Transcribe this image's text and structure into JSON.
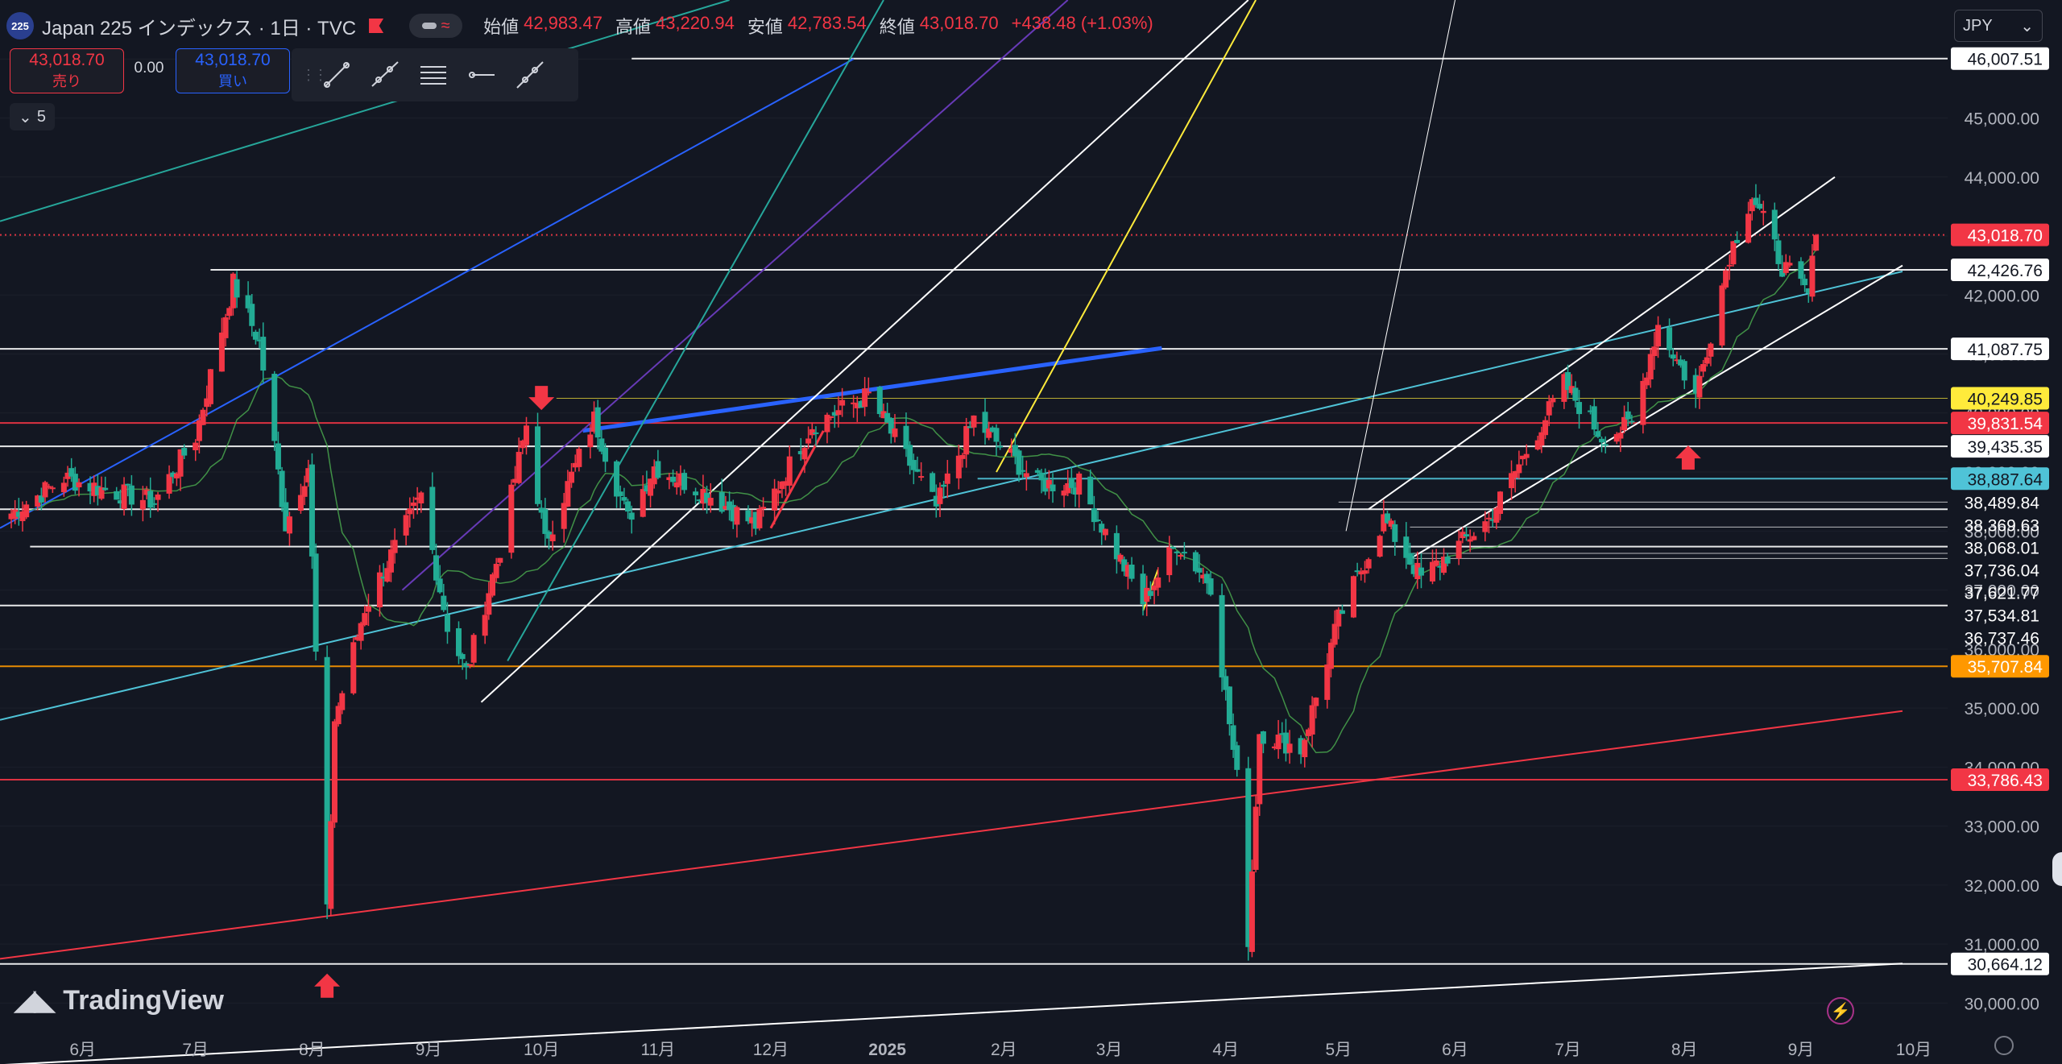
{
  "header": {
    "symbol_badge": "225",
    "title": "Japan 225 インデックス · 1日 · TVC",
    "ohlc": [
      {
        "label": "始値",
        "value": "42,983.47"
      },
      {
        "label": "高値",
        "value": "43,220.94"
      },
      {
        "label": "安値",
        "value": "42,783.54"
      },
      {
        "label": "終値",
        "value": "43,018.70"
      }
    ],
    "change": "+438.48 (+1.03%)"
  },
  "trade": {
    "sell_price": "43,018.70",
    "sell_label": "売り",
    "spread": "0.00",
    "buy_price": "43,018.70",
    "buy_label": "買い"
  },
  "collapse_count": "5",
  "currency": "JPY",
  "logo_text": "TradingView",
  "colors": {
    "background": "#131722",
    "up": "#f23645",
    "down": "#22ab94",
    "ma": "#4caf50",
    "white_line": "#ffffff",
    "blue_line": "#2962ff",
    "cyan_line": "#4fc3d7",
    "purple_line": "#673ab7",
    "teal_line": "#26a69a",
    "yellow_line": "#ffeb3b",
    "red_line": "#f23645",
    "orange_line": "#ff9800"
  },
  "toolbar_icons": [
    "trend-line-icon",
    "ray-icon",
    "horizontal-lines-icon",
    "horizontal-ray-icon",
    "extended-line-icon"
  ],
  "chart_data": {
    "type": "candlestick",
    "x_labels": [
      {
        "label": "6月",
        "date": "2024-06-01"
      },
      {
        "label": "7月",
        "date": "2024-07-01"
      },
      {
        "label": "8月",
        "date": "2024-08-01"
      },
      {
        "label": "9月",
        "date": "2024-09-01"
      },
      {
        "label": "10月",
        "date": "2024-10-01"
      },
      {
        "label": "11月",
        "date": "2024-11-01"
      },
      {
        "label": "12月",
        "date": "2024-12-01"
      },
      {
        "label": "2025",
        "date": "2025-01-01"
      },
      {
        "label": "2月",
        "date": "2025-02-01"
      },
      {
        "label": "3月",
        "date": "2025-03-01"
      },
      {
        "label": "4月",
        "date": "2025-04-01"
      },
      {
        "label": "5月",
        "date": "2025-05-01"
      },
      {
        "label": "6月",
        "date": "2025-06-01"
      },
      {
        "label": "7月",
        "date": "2025-07-01"
      },
      {
        "label": "8月",
        "date": "2025-08-01"
      },
      {
        "label": "9月",
        "date": "2025-09-01"
      },
      {
        "label": "10月",
        "date": "2025-10-01"
      }
    ],
    "y_ticks": [
      "46,000.00",
      "45,000.00",
      "44,000.00",
      "43,000.00",
      "42,000.00",
      "41,000.00",
      "40,000.00",
      "39,000.00",
      "38,000.00",
      "37,000.00",
      "36,000.00",
      "35,000.00",
      "34,000.00",
      "33,000.00",
      "32,000.00",
      "31,000.00",
      "30,000.00"
    ],
    "ylim": [
      29500,
      47000
    ],
    "xlim": [
      "2024-05-10",
      "2025-10-10"
    ],
    "price_levels": [
      {
        "value": 46007.51,
        "text": "46,007.51",
        "color": "#ffffff",
        "badge": "#ffffff",
        "from": "2024-10-25",
        "line": true
      },
      {
        "value": 43018.7,
        "text": "43,018.70",
        "color": "#f23645",
        "badge": "#f23645",
        "from": "2024-05-10",
        "line": "dotted"
      },
      {
        "value": 42426.76,
        "text": "42,426.76",
        "color": "#ffffff",
        "badge": "#ffffff",
        "from": "2024-07-05",
        "line": true
      },
      {
        "value": 41087.75,
        "text": "41,087.75",
        "color": "#ffffff",
        "badge": "#ffffff",
        "from": "2024-05-10",
        "line": true
      },
      {
        "value": 40249.85,
        "text": "40,249.85",
        "color": "#ffeb3b",
        "badge": "#ffeb3b",
        "from": "2024-10-05",
        "line": "thin"
      },
      {
        "value": 39831.54,
        "text": "39,831.54",
        "color": "#f23645",
        "badge": "#f23645",
        "from": "2024-05-10",
        "line": true
      },
      {
        "value": 39435.35,
        "text": "39,435.35",
        "color": "#ffffff",
        "badge": "#ffffff",
        "from": "2024-05-10",
        "line": true
      },
      {
        "value": 38887.64,
        "text": "38,887.64",
        "color": "#4fc3d7",
        "badge": "#4fc3d7",
        "from": "2025-01-25",
        "line": true
      },
      {
        "value": 38489.84,
        "text": "38,489.84",
        "color": "#ffffff",
        "badge": "none",
        "from": "2025-05-01",
        "line": "thin"
      },
      {
        "value": 38369.63,
        "text": "38,369.63",
        "color": "#ffffff",
        "badge": "none",
        "from": "2024-05-10",
        "line": true
      },
      {
        "value": 38068.01,
        "text": "38,068.01",
        "color": "#ffffff",
        "badge": "none",
        "from": "2025-05-20",
        "line": "thin"
      },
      {
        "value": 37736.04,
        "text": "37,736.04",
        "color": "#ffffff",
        "badge": "none",
        "from": "2024-05-18",
        "line": true
      },
      {
        "value": 37621.77,
        "text": "37,621.77",
        "color": "#ffffff",
        "badge": "none",
        "from": "2025-05-20",
        "line": "thin"
      },
      {
        "value": 37534.81,
        "text": "37,534.81",
        "color": "#ffffff",
        "badge": "none",
        "from": "2025-05-20",
        "line": "thin"
      },
      {
        "value": 36737.46,
        "text": "36,737.46",
        "color": "#ffffff",
        "badge": "none",
        "from": "2024-05-10",
        "line": true
      },
      {
        "value": 35707.84,
        "text": "35,707.84",
        "color": "#ff9800",
        "badge": "#ff9800",
        "from": "2024-05-10",
        "line": true
      },
      {
        "value": 33786.43,
        "text": "33,786.43",
        "color": "#f23645",
        "badge": "#f23645",
        "from": "2024-05-10",
        "line": true
      },
      {
        "value": 30664.12,
        "text": "30,664.12",
        "color": "#ffffff",
        "badge": "#ffffff",
        "from": "2024-05-10",
        "line": true
      }
    ],
    "trend_lines": [
      {
        "color": "#ffffff",
        "width": 2,
        "from": [
          "2024-05-10",
          28950
        ],
        "to": [
          "2025-09-28",
          30670
        ]
      },
      {
        "color": "#f23645",
        "width": 2,
        "from": [
          "2024-05-10",
          30750
        ],
        "to": [
          "2025-09-28",
          34950
        ]
      },
      {
        "color": "#4fc3d7",
        "width": 2,
        "from": [
          "2024-05-10",
          34800
        ],
        "to": [
          "2025-09-28",
          42400
        ]
      },
      {
        "color": "#2962ff",
        "width": 2,
        "from": [
          "2024-05-10",
          38050
        ],
        "to": [
          "2024-12-23",
          46000
        ]
      },
      {
        "color": "#2962ff",
        "width": 5,
        "from": [
          "2024-10-12",
          39700
        ],
        "to": [
          "2025-03-15",
          41100
        ]
      },
      {
        "color": "#673ab7",
        "width": 2,
        "from": [
          "2024-08-25",
          37000
        ],
        "to": [
          "2025-02-18",
          47000
        ]
      },
      {
        "color": "#26a69a",
        "width": 2,
        "from": [
          "2024-05-10",
          43250
        ],
        "to": [
          "2024-11-20",
          47000
        ]
      },
      {
        "color": "#26a69a",
        "width": 2,
        "from": [
          "2024-09-22",
          35800
        ],
        "to": [
          "2024-12-31",
          47000
        ]
      },
      {
        "color": "#ffffff",
        "width": 2,
        "from": [
          "2024-09-15",
          35100
        ],
        "to": [
          "2025-04-07",
          47000
        ]
      },
      {
        "color": "#ffeb3b",
        "width": 2,
        "from": [
          "2025-01-30",
          39000
        ],
        "to": [
          "2025-04-09",
          47000
        ]
      },
      {
        "color": "#ffffff",
        "width": 1,
        "from": [
          "2025-05-03",
          38000
        ],
        "to": [
          "2025-06-01",
          47000
        ]
      },
      {
        "color": "#ffffff",
        "width": 2,
        "from": [
          "2025-05-09",
          38370
        ],
        "to": [
          "2025-09-10",
          44000
        ]
      },
      {
        "color": "#ffffff",
        "width": 2,
        "from": [
          "2025-05-20",
          37530
        ],
        "to": [
          "2025-09-28",
          42500
        ]
      },
      {
        "color": "#f23645",
        "width": 3,
        "from": [
          "2024-12-01",
          38050
        ],
        "to": [
          "2024-12-15",
          39700
        ]
      },
      {
        "color": "#ffeb3b",
        "width": 2,
        "from": [
          "2025-03-10",
          36650
        ],
        "to": [
          "2025-03-14",
          37350
        ]
      }
    ],
    "arrows": [
      {
        "date": "2024-10-01",
        "price": 40050,
        "dir": "down"
      },
      {
        "date": "2024-08-05",
        "price": 30500,
        "dir": "up"
      },
      {
        "date": "2025-08-02",
        "price": 39450,
        "dir": "up"
      }
    ],
    "candles_anchors": [
      [
        "2024-05-13",
        38300
      ],
      [
        "2024-05-27",
        38900
      ],
      [
        "2024-06-07",
        38700
      ],
      [
        "2024-06-20",
        38500
      ],
      [
        "2024-07-01",
        39600
      ],
      [
        "2024-07-11",
        42200
      ],
      [
        "2024-07-18",
        41200
      ],
      [
        "2024-07-25",
        38100
      ],
      [
        "2024-07-31",
        39100
      ],
      [
        "2024-08-02",
        35900
      ],
      [
        "2024-08-05",
        31500
      ],
      [
        "2024-08-07",
        34800
      ],
      [
        "2024-08-15",
        36700
      ],
      [
        "2024-08-30",
        38600
      ],
      [
        "2024-09-06",
        36400
      ],
      [
        "2024-09-11",
        35600
      ],
      [
        "2024-09-20",
        37700
      ],
      [
        "2024-09-27",
        39800
      ],
      [
        "2024-10-02",
        37800
      ],
      [
        "2024-10-15",
        39900
      ],
      [
        "2024-10-24",
        38200
      ],
      [
        "2024-10-31",
        39100
      ],
      [
        "2024-11-15",
        38600
      ],
      [
        "2024-11-27",
        38100
      ],
      [
        "2024-12-12",
        39800
      ],
      [
        "2024-12-27",
        40300
      ],
      [
        "2025-01-14",
        38400
      ],
      [
        "2025-01-24",
        39900
      ],
      [
        "2025-02-10",
        38800
      ],
      [
        "2025-02-21",
        38800
      ],
      [
        "2025-03-10",
        36800
      ],
      [
        "2025-03-19",
        37800
      ],
      [
        "2025-03-28",
        37100
      ],
      [
        "2025-04-04",
        33800
      ],
      [
        "2025-04-07",
        31100
      ],
      [
        "2025-04-10",
        34600
      ],
      [
        "2025-04-21",
        34300
      ],
      [
        "2025-05-01",
        36500
      ],
      [
        "2025-05-13",
        38200
      ],
      [
        "2025-05-23",
        37200
      ],
      [
        "2025-06-10",
        38200
      ],
      [
        "2025-06-30",
        40500
      ],
      [
        "2025-07-10",
        39600
      ],
      [
        "2025-07-18",
        39800
      ],
      [
        "2025-07-25",
        41500
      ],
      [
        "2025-08-04",
        40300
      ],
      [
        "2025-08-13",
        42700
      ],
      [
        "2025-08-19",
        43700
      ],
      [
        "2025-08-27",
        42500
      ],
      [
        "2025-09-03",
        42000
      ],
      [
        "2025-09-05",
        43018.7
      ]
    ]
  }
}
